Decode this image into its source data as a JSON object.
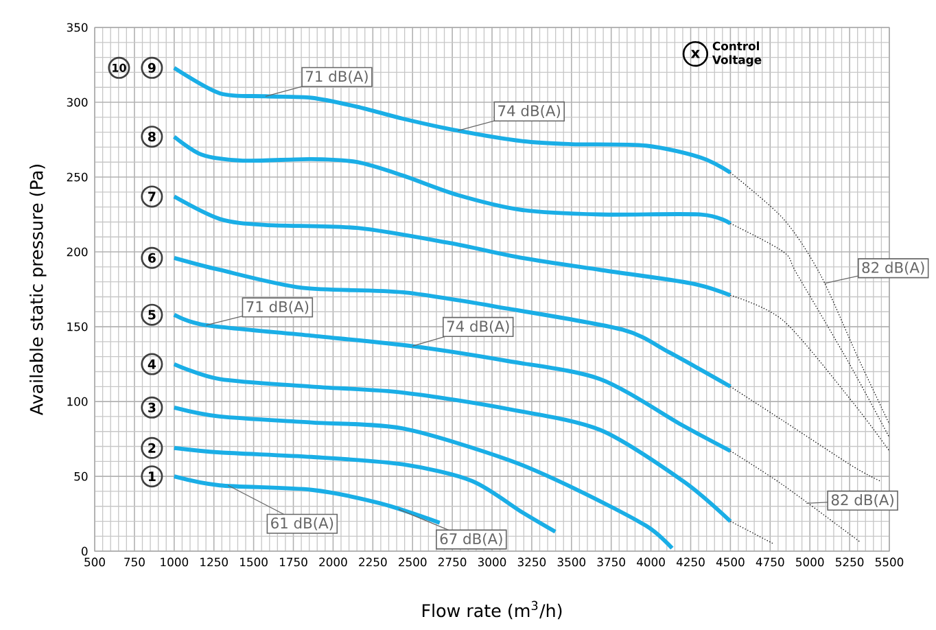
{
  "chart_data": {
    "type": "line",
    "xlabel": "Flow rate (m$^{3}$/h)",
    "ylabel": "Available static pressure (Pa)",
    "xlim": [
      500,
      5500
    ],
    "ylim": [
      0,
      350
    ],
    "xticks": [
      500,
      750,
      1000,
      1250,
      1500,
      1750,
      2000,
      2250,
      2500,
      2750,
      3000,
      3250,
      3500,
      3750,
      4000,
      4250,
      4500,
      4750,
      5000,
      5250,
      5500
    ],
    "yticks": [
      0,
      50,
      100,
      150,
      200,
      250,
      300,
      350
    ],
    "grid": true,
    "marker": "none",
    "series": [
      {
        "name": "1",
        "color": "#1aaee6",
        "line_style": "solid",
        "x": [
          1000,
          1287,
          1864,
          2296,
          2671
        ],
        "values": [
          50,
          44,
          41,
          32,
          19
        ]
      },
      {
        "name": "2",
        "color": "#1aaee6",
        "line_style": "solid",
        "x": [
          1000,
          1287,
          1864,
          2440,
          2873,
          3190,
          3398
        ],
        "values": [
          69,
          66,
          63,
          58,
          47,
          26,
          13
        ]
      },
      {
        "name": "3",
        "color": "#1aaee6",
        "line_style": "solid",
        "x": [
          1000,
          1287,
          1864,
          2440,
          3104,
          3536,
          3969,
          4133
        ],
        "values": [
          96,
          90,
          86,
          82,
          61,
          41,
          17,
          2
        ]
      },
      {
        "name": "4",
        "color": "#1aaee6",
        "line_style": "solid",
        "x": [
          1000,
          1287,
          1864,
          2440,
          3104,
          3681,
          4200,
          4500
        ],
        "values": [
          125,
          115,
          110,
          106,
          95,
          81,
          47,
          20
        ]
      },
      {
        "name": "5",
        "color": "#1aaee6",
        "line_style": "solid",
        "x": [
          1000,
          1201,
          1864,
          2498,
          3104,
          3681,
          4200,
          4500
        ],
        "values": [
          158,
          151,
          144,
          137,
          127,
          115,
          84,
          67
        ]
      },
      {
        "name": "6",
        "color": "#1aaee6",
        "line_style": "solid",
        "x": [
          1000,
          1287,
          1806,
          2440,
          3104,
          3822,
          4113,
          4500
        ],
        "values": [
          196,
          188,
          176,
          173,
          162,
          148,
          133,
          110
        ]
      },
      {
        "name": "7",
        "color": "#1aaee6",
        "line_style": "solid",
        "x": [
          1000,
          1287,
          1575,
          2152,
          2729,
          3190,
          3681,
          4254,
          4500
        ],
        "values": [
          237,
          222,
          218,
          216,
          206,
          196,
          188,
          179,
          171
        ]
      },
      {
        "name": "8",
        "color": "#1aaee6",
        "line_style": "solid",
        "x": [
          1000,
          1172,
          1431,
          1864,
          2152,
          2440,
          2785,
          3190,
          3681,
          4315,
          4500
        ],
        "values": [
          277,
          265,
          261,
          262,
          260,
          251,
          238,
          228,
          225,
          225,
          219
        ]
      },
      {
        "name": "9",
        "color": "#1aaee6",
        "line_style": "solid",
        "x": [
          1000,
          1287,
          1575,
          1864,
          2152,
          2440,
          2785,
          3190,
          3500,
          3969,
          4315,
          4500
        ],
        "values": [
          323,
          306,
          304,
          303,
          297,
          289,
          281,
          274,
          272,
          271,
          263,
          253
        ]
      },
      {
        "color": "#000000",
        "line_style": "dotted",
        "x": [
          4500,
          4770
        ],
        "values": [
          20,
          5
        ]
      },
      {
        "color": "#000000",
        "line_style": "dotted",
        "x": [
          4500,
          4834,
          5318
        ],
        "values": [
          67,
          44,
          6
        ]
      },
      {
        "color": "#000000",
        "line_style": "dotted",
        "x": [
          4500,
          4834,
          5266,
          5440
        ],
        "values": [
          110,
          87,
          57,
          47
        ]
      },
      {
        "color": "#000000",
        "line_style": "dotted",
        "x": [
          4500,
          4834,
          5266,
          5500
        ],
        "values": [
          171,
          154,
          100,
          67
        ]
      },
      {
        "color": "#000000",
        "line_style": "dotted",
        "x": [
          4500,
          4834,
          4920,
          5250,
          5500
        ],
        "values": [
          219,
          200,
          185,
          125,
          76
        ]
      },
      {
        "color": "#000000",
        "line_style": "dotted",
        "x": [
          4500,
          4834,
          5065,
          5300,
          5500
        ],
        "values": [
          253,
          222,
          185,
          130,
          85
        ]
      }
    ],
    "annotations": [
      {
        "text": "71 dB(A)",
        "x": 1575,
        "y": 304
      },
      {
        "text": "74 dB(A)",
        "x": 2785,
        "y": 281
      },
      {
        "text": "71 dB(A)",
        "x": 1201,
        "y": 151
      },
      {
        "text": "74 dB(A)",
        "x": 2498,
        "y": 137
      },
      {
        "text": "61 dB(A)",
        "x": 1339,
        "y": 44
      },
      {
        "text": "67 dB(A)",
        "x": 2412,
        "y": 28
      },
      {
        "text": "82 dB(A)",
        "x": 5093,
        "y": 179
      },
      {
        "text": "82 dB(A)",
        "x": 4978,
        "y": 32
      },
      {
        "text": "10",
        "x": 653,
        "y": 323
      },
      "x",
      "Control Voltage"
    ]
  }
}
